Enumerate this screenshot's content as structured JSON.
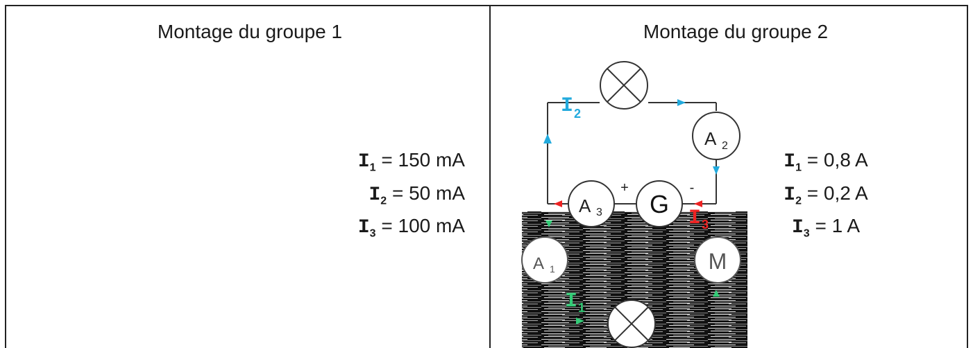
{
  "panels": [
    {
      "title": "Montage du groupe 1",
      "values": [
        {
          "sym": "I",
          "sub": "1",
          "value": "= 150 mA"
        },
        {
          "sym": "I",
          "sub": "2",
          "value": "= 50 mA"
        },
        {
          "sym": "I",
          "sub": "3",
          "value": "= 100 mA"
        }
      ]
    },
    {
      "title": "Montage du groupe 2",
      "values": [
        {
          "sym": "I",
          "sub": "1",
          "value": "= 0,8 A"
        },
        {
          "sym": "I",
          "sub": "2",
          "value": "= 0,2 A"
        },
        {
          "sym": "I",
          "sub": "3",
          "value": "= 1 A"
        }
      ]
    }
  ],
  "circuit": {
    "ammeter_1": {
      "letter": "A",
      "sub": "1"
    },
    "ammeter_2": {
      "letter": "A",
      "sub": "2"
    },
    "ammeter_3": {
      "letter": "A",
      "sub": "3"
    },
    "generator": "G",
    "motor": "M",
    "plus": "+",
    "minus": "-",
    "current_label_2": {
      "letter": "I",
      "sub": "2"
    },
    "current_label_3": {
      "letter": "I",
      "sub": "3"
    },
    "current_label_1": {
      "letter": "I",
      "sub": "1"
    },
    "colors": {
      "i1": "#33cc77",
      "i2": "#22aadd",
      "i3": "#ee2222",
      "wire": "#333333"
    }
  }
}
